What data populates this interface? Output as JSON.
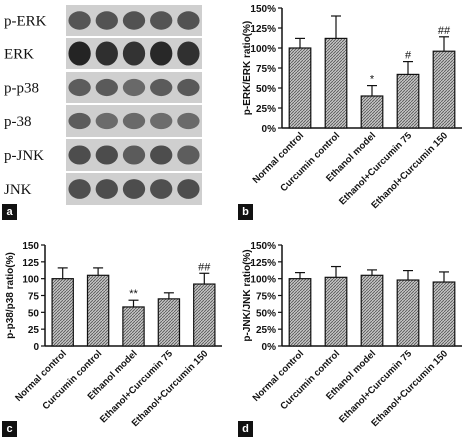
{
  "panel_letters": {
    "a": "a",
    "b": "b",
    "c": "c",
    "d": "d"
  },
  "blot": {
    "labels": [
      "p-ERK",
      "ERK",
      "p-p38",
      "p-38",
      "p-JNK",
      "JNK"
    ],
    "lanes": 5
  },
  "colors": {
    "bar_fill": "#bdbdbd",
    "bar_hatch": "#5a5a5a",
    "axis": "#111111"
  },
  "chart_data": [
    {
      "type": "bar",
      "panel": "b",
      "categories": [
        "Normal control",
        "Curcumin control",
        "Ethanol model",
        "Ethanol+Curcumin 75",
        "Ethanol+Curcumin 150"
      ],
      "values": [
        100,
        112,
        40,
        67,
        96
      ],
      "errors": [
        12,
        28,
        13,
        16,
        18
      ],
      "annotations": [
        "",
        "",
        "*",
        "#",
        "##"
      ],
      "ylabel": "p-ERK/ERK ratio(%)",
      "ylim": [
        0,
        150
      ],
      "yticks": [
        "0%",
        "25%",
        "50%",
        "75%",
        "100%",
        "125%",
        "150%"
      ]
    },
    {
      "type": "bar",
      "panel": "c",
      "categories": [
        "Normal control",
        "Curcumin control",
        "Ethanol model",
        "Ethanol+Curcumin 75",
        "Ethanol+Curcumin 150"
      ],
      "values": [
        100,
        105,
        58,
        70,
        92
      ],
      "errors": [
        16,
        11,
        10,
        9,
        16
      ],
      "annotations": [
        "",
        "",
        "**",
        "",
        "##"
      ],
      "ylabel": "p-p38/p38 ratio(%)",
      "ylim": [
        0,
        150
      ],
      "yticks": [
        "0",
        "25",
        "50",
        "75",
        "100",
        "125",
        "150"
      ]
    },
    {
      "type": "bar",
      "panel": "d",
      "categories": [
        "Normal control",
        "Curcumin control",
        "Ethanol model",
        "Ethanol+Curcumin 75",
        "Ethanol+Curcumin 150"
      ],
      "values": [
        100,
        102,
        105,
        98,
        95
      ],
      "errors": [
        9,
        16,
        8,
        14,
        15
      ],
      "annotations": [
        "",
        "",
        "",
        "",
        ""
      ],
      "ylabel": "p-JNK/JNK ratio(%)",
      "ylim": [
        0,
        150
      ],
      "yticks": [
        "0%",
        "25%",
        "50%",
        "75%",
        "100%",
        "125%",
        "150%"
      ]
    }
  ]
}
